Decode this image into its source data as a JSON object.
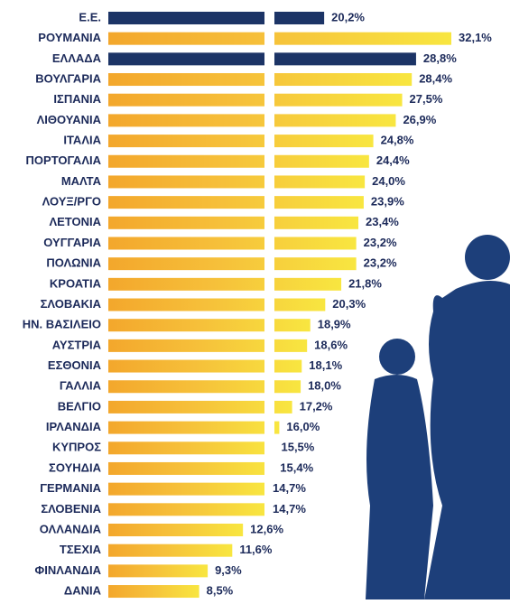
{
  "chart_data": {
    "type": "barh",
    "categories": [
      "Ε.Ε.",
      "ΡΟΥΜΑΝΙΑ",
      "ΕΛΛΑΔΑ",
      "ΒΟΥΛΓΑΡΙΑ",
      "ΙΣΠΑΝΙΑ",
      "ΛΙΘΟΥΑΝΙΑ",
      "ΙΤΑΛΙΑ",
      "ΠΟΡΤΟΓΑΛΙΑ",
      "ΜΑΛΤΑ",
      "ΛΟΥΞ/ΡΓΟ",
      "ΛΕΤΟΝΙΑ",
      "ΟΥΓΓΑΡΙΑ",
      "ΠΟΛΩΝΙΑ",
      "ΚΡΟΑΤΙΑ",
      "ΣΛΟΒΑΚΙΑ",
      "ΗΝ. ΒΑΣΙΛΕΙΟ",
      "ΑΥΣΤΡΙΑ",
      "ΕΣΘΟΝΙΑ",
      "ΓΑΛΛΙΑ",
      "ΒΕΛΓΙΟ",
      "ΙΡΛΑΝΔΙΑ",
      "ΚΥΠΡΟΣ",
      "ΣΟΥΗΔΙΑ",
      "ΓΕΡΜΑΝΙΑ",
      "ΣΛΟΒΕΝΙΑ",
      "ΟΛΛΑΝΔΙΑ",
      "ΤΣΕΧΙΑ",
      "ΦΙΝΛΑΝΔΙΑ",
      "ΔΑΝΙΑ"
    ],
    "values": [
      20.2,
      32.1,
      28.8,
      28.4,
      27.5,
      26.9,
      24.8,
      24.4,
      24.0,
      23.9,
      23.4,
      23.2,
      23.2,
      21.8,
      20.3,
      18.9,
      18.6,
      18.1,
      18.0,
      17.2,
      16.0,
      15.5,
      15.4,
      14.7,
      14.7,
      12.6,
      11.6,
      9.3,
      8.5
    ],
    "value_labels": [
      "20,2%",
      "32,1%",
      "28,8%",
      "28,4%",
      "27,5%",
      "26,9%",
      "24,8%",
      "24,4%",
      "24,0%",
      "23,9%",
      "23,4%",
      "23,2%",
      "23,2%",
      "21,8%",
      "20,3%",
      "18,9%",
      "18,6%",
      "18,1%",
      "18,0%",
      "17,2%",
      "16,0%",
      "15,5%",
      "15,4%",
      "14,7%",
      "14,7%",
      "12,6%",
      "11,6%",
      "9,3%",
      "8,5%"
    ],
    "colors": [
      "#1c3466",
      "#f5cf2e",
      "#1c3466",
      "#f5cf2e",
      "#f5cf2e",
      "#f5cf2e",
      "#f5cf2e",
      "#f5cf2e",
      "#f5cf2e",
      "#f5cf2e",
      "#f5cf2e",
      "#f5cf2e",
      "#f5cf2e",
      "#f5cf2e",
      "#f5cf2e",
      "#f5cf2e",
      "#f5cf2e",
      "#f5cf2e",
      "#f5cf2e",
      "#f5cf2e",
      "#f5cf2e",
      "#f5cf2e",
      "#f5cf2e",
      "#f5cf2e",
      "#f5cf2e",
      "#f5cf2e",
      "#f5cf2e",
      "#f5cf2e",
      "#f5cf2e"
    ]
  }
}
